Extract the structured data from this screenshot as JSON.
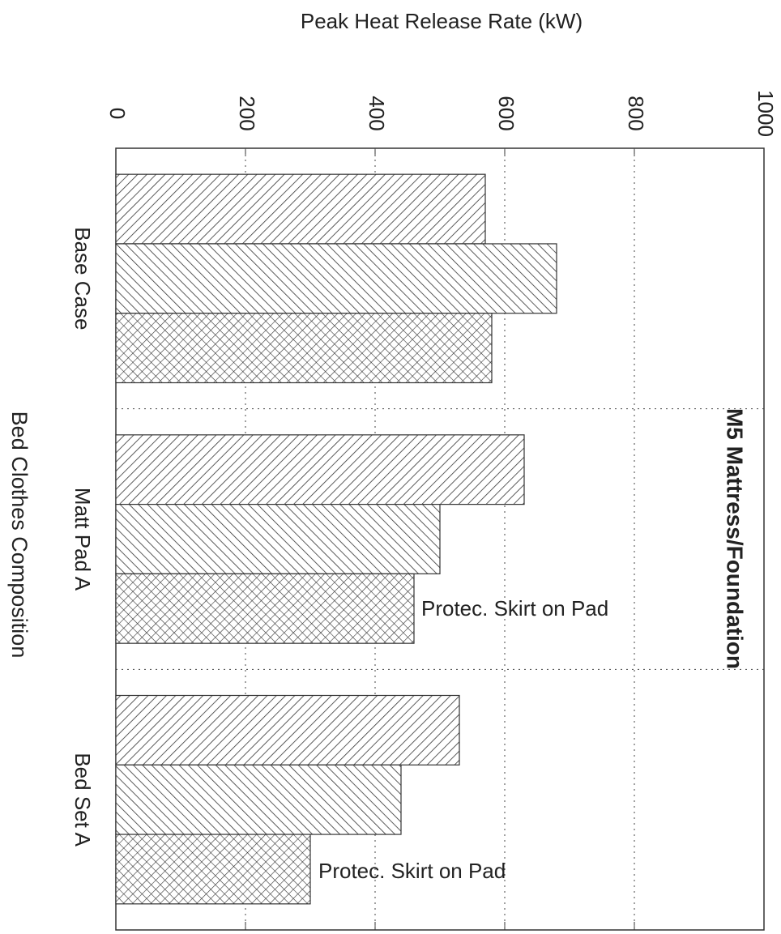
{
  "chart_data": {
    "type": "bar",
    "orientation": "horizontal",
    "title": "M5 Mattress/Foundation",
    "x_label": "Bed Clothes Composition",
    "y_label": "Peak Heat Release Rate (kW)",
    "categories": [
      "Base Case",
      "Matt Pad A",
      "Bed Set A"
    ],
    "series": [
      {
        "color": "#333333",
        "hatch": "forward",
        "values": [
          570,
          630,
          530
        ]
      },
      {
        "color": "#333333",
        "hatch": "backward",
        "values": [
          680,
          500,
          440
        ]
      },
      {
        "color": "#333333",
        "hatch": "cross",
        "values": [
          580,
          460,
          300
        ]
      }
    ],
    "ylim": [
      0,
      1000
    ],
    "yticks": [
      0,
      200,
      400,
      600,
      800,
      1000
    ],
    "grid": true,
    "annotations": [
      "Protec. Skirt on Pad",
      "Protec. Skirt on Pad"
    ]
  }
}
